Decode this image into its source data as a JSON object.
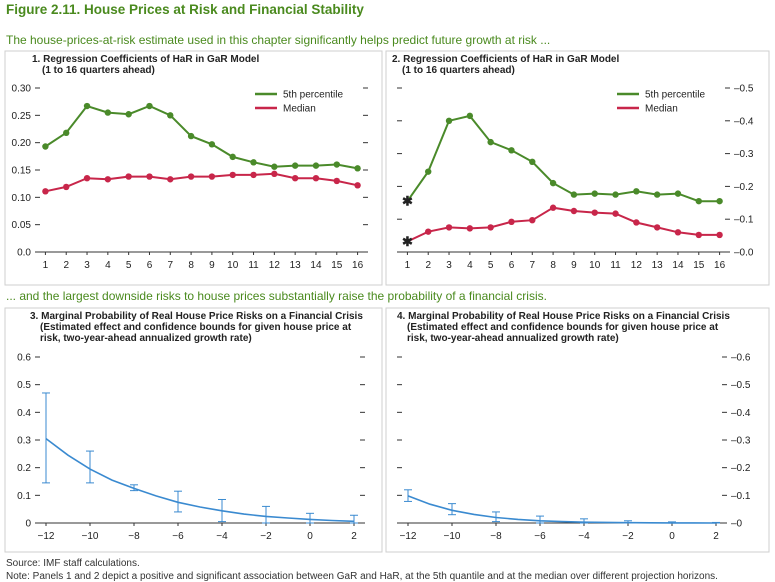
{
  "figure": {
    "title": "Figure 2.11. House Prices at Risk and Financial Stability",
    "subhead_top": "The house-prices-at-risk estimate used in this chapter significantly helps predict future growth at risk ...",
    "subhead_bottom": "... and the largest downside risks to house prices substantially raise the probability of a financial crisis.",
    "source": "Source: IMF staff calculations.",
    "note": "Note: Panels 1 and 2 depict a positive and significant association between GaR and HaR, at the 5th quantile and at the median over different projection horizons."
  },
  "colors": {
    "green": "#4a8a2a",
    "red": "#c8264a",
    "blue": "#3a8ad0",
    "axis": "#333333"
  },
  "chart_data": [
    {
      "panel": 1,
      "type": "line",
      "title_line1": "1. Regression Coefficients of HaR in GaR Model",
      "title_line2": "(1 to 16 quarters ahead)",
      "categories": [
        "1",
        "2",
        "3",
        "4",
        "5",
        "6",
        "7",
        "8",
        "9",
        "10",
        "11",
        "12",
        "13",
        "14",
        "15",
        "16"
      ],
      "series": [
        {
          "name": "5th percentile",
          "color": "#4a8a2a",
          "values": [
            0.193,
            0.218,
            0.267,
            0.255,
            0.252,
            0.267,
            0.25,
            0.212,
            0.197,
            0.174,
            0.164,
            0.156,
            0.158,
            0.158,
            0.16,
            0.153
          ]
        },
        {
          "name": "Median",
          "color": "#c8264a",
          "values": [
            0.111,
            0.119,
            0.135,
            0.133,
            0.138,
            0.138,
            0.133,
            0.138,
            0.138,
            0.141,
            0.141,
            0.143,
            0.135,
            0.135,
            0.13,
            0.122
          ]
        }
      ],
      "ylim": [
        0,
        0.3
      ],
      "yticks": [
        "0.0",
        "0.05",
        "0.10",
        "0.15",
        "0.20",
        "0.25",
        "0.30"
      ],
      "ytick_values": [
        0,
        0.05,
        0.1,
        0.15,
        0.2,
        0.25,
        0.3
      ],
      "left_labels": true,
      "right_labels": false,
      "legend": "top-right"
    },
    {
      "panel": 2,
      "type": "line",
      "title_line1": "2. Regression Coefficients of HaR in GaR Model",
      "title_line2": "(1 to 16 quarters ahead)",
      "categories": [
        "1",
        "2",
        "3",
        "4",
        "5",
        "6",
        "7",
        "8",
        "9",
        "10",
        "11",
        "12",
        "13",
        "14",
        "15",
        "16"
      ],
      "series": [
        {
          "name": "5th percentile",
          "color": "#4a8a2a",
          "values": [
            0.155,
            0.245,
            0.4,
            0.415,
            0.335,
            0.31,
            0.275,
            0.21,
            0.175,
            0.178,
            0.175,
            0.185,
            0.175,
            0.178,
            0.155,
            0.155
          ],
          "star_at_first": true
        },
        {
          "name": "Median",
          "color": "#c8264a",
          "values": [
            0.032,
            0.062,
            0.075,
            0.072,
            0.075,
            0.092,
            0.097,
            0.135,
            0.125,
            0.12,
            0.117,
            0.09,
            0.075,
            0.06,
            0.052,
            0.052
          ],
          "star_at_first": true
        }
      ],
      "ylim": [
        0,
        0.5
      ],
      "yticks": [
        "0.0",
        "0.1",
        "0.2",
        "0.3",
        "0.4",
        "0.5"
      ],
      "ytick_values": [
        0,
        0.1,
        0.2,
        0.3,
        0.4,
        0.5
      ],
      "left_labels": false,
      "right_labels": true,
      "legend": "top-right"
    },
    {
      "panel": 3,
      "type": "line",
      "title_line1": "3. Marginal Probability of Real House Price Risks on a Financial Crisis",
      "title_line2": "(Estimated effect and confidence bounds for given house price at",
      "title_line3": "risk, two-year-ahead annualized growth rate)",
      "xticks": [
        "−12",
        "−10",
        "−8",
        "−6",
        "−4",
        "−2",
        "0",
        "2"
      ],
      "xtick_values": [
        -12,
        -10,
        -8,
        -6,
        -4,
        -2,
        0,
        2
      ],
      "xlim": [
        -12.5,
        2.5
      ],
      "series": [
        {
          "name": "Estimated effect",
          "color": "#3a8ad0",
          "x": [
            -12,
            -11,
            -10,
            -9,
            -8,
            -7,
            -6,
            -5,
            -4,
            -3,
            -2,
            -1,
            0,
            1,
            2
          ],
          "values": [
            0.305,
            0.245,
            0.195,
            0.155,
            0.125,
            0.098,
            0.075,
            0.058,
            0.044,
            0.032,
            0.024,
            0.018,
            0.013,
            0.009,
            0.006
          ]
        }
      ],
      "error_bars": [
        {
          "x": -12,
          "low": 0.145,
          "high": 0.47
        },
        {
          "x": -10,
          "low": 0.145,
          "high": 0.26
        },
        {
          "x": -8,
          "low": 0.117,
          "high": 0.138
        },
        {
          "x": -6,
          "low": 0.04,
          "high": 0.115
        },
        {
          "x": -4,
          "low": 0.005,
          "high": 0.085
        },
        {
          "x": -2,
          "low": 0.0,
          "high": 0.06
        },
        {
          "x": 0,
          "low": 0.0,
          "high": 0.035
        },
        {
          "x": 2,
          "low": 0.0,
          "high": 0.028
        }
      ],
      "ylim": [
        0,
        0.6
      ],
      "yticks": [
        "0",
        "0.1",
        "0.2",
        "0.3",
        "0.4",
        "0.5",
        "0.6"
      ],
      "ytick_values": [
        0,
        0.1,
        0.2,
        0.3,
        0.4,
        0.5,
        0.6
      ],
      "left_labels": true,
      "right_labels": false
    },
    {
      "panel": 4,
      "type": "line",
      "title_line1": "4. Marginal Probability of Real House Price Risks on a Financial Crisis",
      "title_line2": "(Estimated effect and confidence bounds for given house price at",
      "title_line3": "risk, two-year-ahead annualized growth rate)",
      "xticks": [
        "−12",
        "−10",
        "−8",
        "−6",
        "−4",
        "−2",
        "0",
        "2"
      ],
      "xtick_values": [
        -12,
        -10,
        -8,
        -6,
        -4,
        -2,
        0,
        2
      ],
      "xlim": [
        -12.5,
        2.5
      ],
      "series": [
        {
          "name": "Estimated effect",
          "color": "#3a8ad0",
          "x": [
            -12,
            -11,
            -10,
            -9,
            -8,
            -7,
            -6,
            -5,
            -4,
            -3,
            -2,
            -1,
            0,
            1,
            2
          ],
          "values": [
            0.098,
            0.068,
            0.046,
            0.031,
            0.02,
            0.013,
            0.008,
            0.005,
            0.003,
            0.002,
            0.001,
            0.0007,
            0.0004,
            0.0002,
            0.0001
          ]
        }
      ],
      "error_bars": [
        {
          "x": -12,
          "low": 0.078,
          "high": 0.12
        },
        {
          "x": -10,
          "low": 0.03,
          "high": 0.07
        },
        {
          "x": -8,
          "low": 0.005,
          "high": 0.04
        },
        {
          "x": -6,
          "low": 0.0,
          "high": 0.025
        },
        {
          "x": -4,
          "low": 0.0,
          "high": 0.015
        },
        {
          "x": -2,
          "low": 0.0,
          "high": 0.008
        },
        {
          "x": 0,
          "low": 0.0,
          "high": 0.004
        },
        {
          "x": 2,
          "low": 0.0,
          "high": 0.002
        }
      ],
      "ylim": [
        0,
        0.6
      ],
      "yticks": [
        "0",
        "0.1",
        "0.2",
        "0.3",
        "0.4",
        "0.5",
        "0.6"
      ],
      "ytick_values": [
        0,
        0.1,
        0.2,
        0.3,
        0.4,
        0.5,
        0.6
      ],
      "left_labels": false,
      "right_labels": true
    }
  ]
}
